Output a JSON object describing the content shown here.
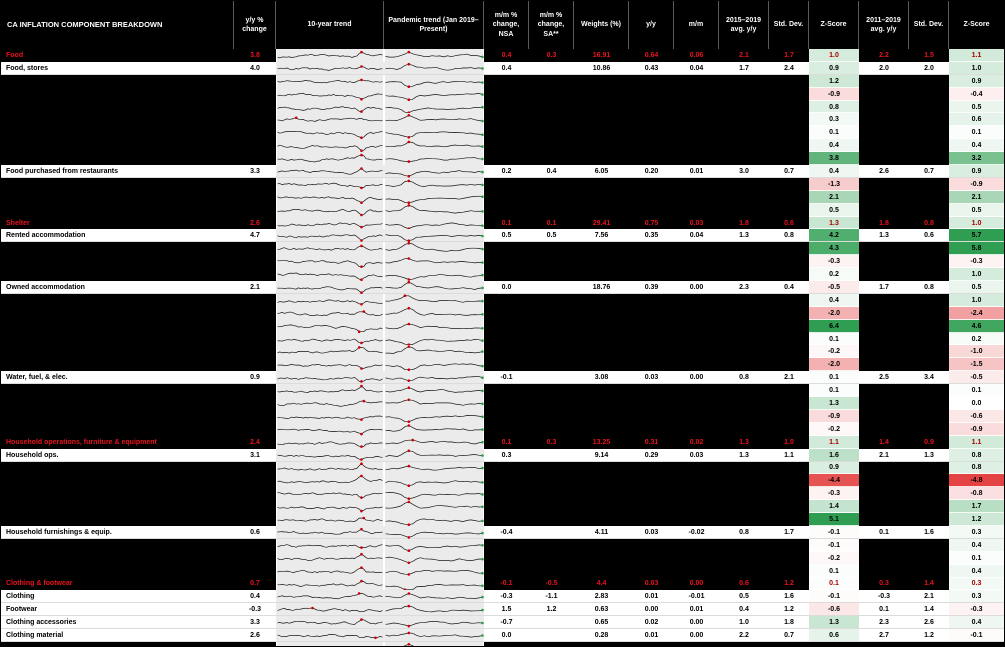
{
  "title": "CA INFLATION COMPONENT BREAKDOWN",
  "colors": {
    "header_bg": "#000000",
    "header_text": "#ffffff",
    "category_text": "#e8131d",
    "trend_bg": "#ebebeb",
    "sparkline": "#161616",
    "marker_red": "#cc0000",
    "marker_green": "#2e9e4f",
    "z_positive_end": "#2f9e52",
    "z_negative_end": "#e23b3b"
  },
  "chart_data": {
    "type": "table",
    "title": "CA INFLATION COMPONENT BREAKDOWN",
    "columns": [
      {
        "key": "label",
        "label": "CA INFLATION COMPONENT BREAKDOWN"
      },
      {
        "key": "yy_change",
        "label": "y/y % change"
      },
      {
        "key": "trend10",
        "label": "10-year trend"
      },
      {
        "key": "trend_pandemic",
        "label": "Pandemic trend (Jan 2019–Present)"
      },
      {
        "key": "mm_nsa",
        "label": "m/m % change, NSA"
      },
      {
        "key": "mm_sa",
        "label": "m/m % change, SA**"
      },
      {
        "key": "weights",
        "label": "Weights (%)"
      },
      {
        "key": "yy",
        "label": "y/y"
      },
      {
        "key": "mm",
        "label": "m/m"
      },
      {
        "key": "avg1",
        "label": "2015–2019 avg. y/y"
      },
      {
        "key": "std1",
        "label": "Std. Dev."
      },
      {
        "key": "z1",
        "label": "Z-Score"
      },
      {
        "key": "avg2",
        "label": "2011–2019 avg. y/y"
      },
      {
        "key": "std2",
        "label": "Std. Dev."
      },
      {
        "key": "z2",
        "label": "Z-Score"
      }
    ],
    "rows": [
      {
        "type": "category",
        "label": "Food",
        "yy_change": "3.8",
        "mm_nsa": "0.4",
        "mm_sa": "0.3",
        "weights": "16.91",
        "yy": "0.64",
        "mm": "0.06",
        "avg1": "2.1",
        "std1": "1.7",
        "z1": "1.0",
        "avg2": "2.2",
        "std2": "1.5",
        "z2": "1.1"
      },
      {
        "type": "item",
        "label": "Food, stores",
        "yy_change": "4.0",
        "mm_nsa": "0.4",
        "mm_sa": "",
        "weights": "10.86",
        "yy": "0.43",
        "mm": "0.04",
        "avg1": "1.7",
        "std1": "2.4",
        "z1": "0.9",
        "avg2": "2.0",
        "std2": "2.0",
        "z2": "1.0"
      },
      {
        "type": "redacted",
        "z1": "1.2",
        "z2": "0.9"
      },
      {
        "type": "redacted",
        "z1": "-0.9",
        "z2": "-0.4"
      },
      {
        "type": "redacted",
        "z1": "0.8",
        "z2": "0.5"
      },
      {
        "type": "redacted",
        "z1": "0.3",
        "z2": "0.6"
      },
      {
        "type": "redacted",
        "z1": "0.1",
        "z2": "0.1"
      },
      {
        "type": "redacted",
        "z1": "0.4",
        "z2": "0.4"
      },
      {
        "type": "redacted",
        "z1": "3.8",
        "z2": "3.2"
      },
      {
        "type": "item",
        "label": "Food purchased from restaurants",
        "yy_change": "3.3",
        "mm_nsa": "0.2",
        "mm_sa": "0.4",
        "weights": "6.05",
        "yy": "0.20",
        "mm": "0.01",
        "avg1": "3.0",
        "std1": "0.7",
        "z1": "0.4",
        "avg2": "2.6",
        "std2": "0.7",
        "z2": "0.9"
      },
      {
        "type": "redacted",
        "z1": "-1.3",
        "z2": "-0.9"
      },
      {
        "type": "redacted",
        "z1": "2.1",
        "z2": "2.1"
      },
      {
        "type": "redacted",
        "z1": "0.5",
        "z2": "0.5"
      },
      {
        "type": "category",
        "label": "Shelter",
        "yy_change": "2.6",
        "mm_nsa": "0.1",
        "mm_sa": "0.1",
        "weights": "29.41",
        "yy": "0.75",
        "mm": "0.03",
        "avg1": "1.8",
        "std1": "0.6",
        "z1": "1.3",
        "avg2": "1.8",
        "std2": "0.8",
        "z2": "1.0"
      },
      {
        "type": "item",
        "label": "Rented accommodation",
        "yy_change": "4.7",
        "mm_nsa": "0.5",
        "mm_sa": "0.5",
        "weights": "7.56",
        "yy": "0.35",
        "mm": "0.04",
        "avg1": "1.3",
        "std1": "0.8",
        "z1": "4.2",
        "avg2": "1.3",
        "std2": "0.6",
        "z2": "5.7"
      },
      {
        "type": "redacted",
        "z1": "4.3",
        "z2": "5.8"
      },
      {
        "type": "redacted",
        "z1": "-0.3",
        "z2": "-0.3"
      },
      {
        "type": "redacted",
        "z1": "0.2",
        "z2": "1.0"
      },
      {
        "type": "item",
        "label": "Owned accommodation",
        "yy_change": "2.1",
        "mm_nsa": "0.0",
        "mm_sa": "",
        "weights": "18.76",
        "yy": "0.39",
        "mm": "0.00",
        "avg1": "2.3",
        "std1": "0.4",
        "z1": "-0.5",
        "avg2": "1.7",
        "std2": "0.8",
        "z2": "0.5"
      },
      {
        "type": "redacted",
        "z1": "0.4",
        "z2": "1.0"
      },
      {
        "type": "redacted",
        "z1": "-2.0",
        "z2": "-2.4"
      },
      {
        "type": "redacted",
        "z1": "6.4",
        "z2": "4.6"
      },
      {
        "type": "redacted",
        "z1": "0.1",
        "z2": "0.2"
      },
      {
        "type": "redacted",
        "z1": "-0.2",
        "z2": "-1.0"
      },
      {
        "type": "redacted",
        "z1": "-2.0",
        "z2": "-1.5"
      },
      {
        "type": "item",
        "label": "Water, fuel, & elec.",
        "yy_change": "0.9",
        "mm_nsa": "-0.1",
        "mm_sa": "",
        "weights": "3.08",
        "yy": "0.03",
        "mm": "0.00",
        "avg1": "0.8",
        "std1": "2.1",
        "z1": "0.1",
        "avg2": "2.5",
        "std2": "3.4",
        "z2": "-0.5"
      },
      {
        "type": "redacted",
        "z1": "0.1",
        "z2": "0.1"
      },
      {
        "type": "redacted",
        "z1": "1.3",
        "z2": "0.0"
      },
      {
        "type": "redacted",
        "z1": "-0.9",
        "z2": "-0.6"
      },
      {
        "type": "redacted",
        "z1": "-0.2",
        "z2": "-0.9"
      },
      {
        "type": "category",
        "label": "Household operations, furniture & equipment",
        "yy_change": "2.4",
        "mm_nsa": "0.1",
        "mm_sa": "0.3",
        "weights": "13.25",
        "yy": "0.31",
        "mm": "0.02",
        "avg1": "1.3",
        "std1": "1.0",
        "z1": "1.1",
        "avg2": "1.4",
        "std2": "0.9",
        "z2": "1.1"
      },
      {
        "type": "item",
        "label": "Household ops.",
        "yy_change": "3.1",
        "mm_nsa": "0.3",
        "mm_sa": "",
        "weights": "9.14",
        "yy": "0.29",
        "mm": "0.03",
        "avg1": "1.3",
        "std1": "1.1",
        "z1": "1.6",
        "avg2": "2.1",
        "std2": "1.3",
        "z2": "0.8"
      },
      {
        "type": "redacted",
        "z1": "0.9",
        "z2": "0.8"
      },
      {
        "type": "redacted",
        "z1": "-4.4",
        "z2": "-4.8"
      },
      {
        "type": "redacted",
        "z1": "-0.3",
        "z2": "-0.8"
      },
      {
        "type": "redacted",
        "z1": "1.4",
        "z2": "1.7"
      },
      {
        "type": "redacted",
        "z1": "5.1",
        "z2": "1.2"
      },
      {
        "type": "item",
        "label": "Household furnishings & equip.",
        "yy_change": "0.6",
        "mm_nsa": "-0.4",
        "mm_sa": "",
        "weights": "4.11",
        "yy": "0.03",
        "mm": "-0.02",
        "avg1": "0.8",
        "std1": "1.7",
        "z1": "-0.1",
        "avg2": "0.1",
        "std2": "1.6",
        "z2": "0.3"
      },
      {
        "type": "redacted",
        "z1": "-0.1",
        "z2": "0.4"
      },
      {
        "type": "redacted",
        "z1": "-0.2",
        "z2": "0.1"
      },
      {
        "type": "redacted",
        "z1": "0.1",
        "z2": "0.4"
      },
      {
        "type": "category",
        "label": "Clothing & footwear",
        "yy_change": "0.7",
        "mm_nsa": "-0.1",
        "mm_sa": "-0.5",
        "weights": "4.4",
        "yy": "0.03",
        "mm": "0.00",
        "avg1": "0.6",
        "std1": "1.2",
        "z1": "0.1",
        "avg2": "0.3",
        "std2": "1.4",
        "z2": "0.3"
      },
      {
        "type": "item",
        "label": "Clothing",
        "yy_change": "0.4",
        "mm_nsa": "-0.3",
        "mm_sa": "-1.1",
        "weights": "2.83",
        "yy": "0.01",
        "mm": "-0.01",
        "avg1": "0.5",
        "std1": "1.6",
        "z1": "-0.1",
        "avg2": "-0.3",
        "std2": "2.1",
        "z2": "0.3"
      },
      {
        "type": "item",
        "label": "Footwear",
        "yy_change": "-0.3",
        "mm_nsa": "1.5",
        "mm_sa": "1.2",
        "weights": "0.63",
        "yy": "0.00",
        "mm": "0.01",
        "avg1": "0.4",
        "std1": "1.2",
        "z1": "-0.6",
        "avg2": "0.1",
        "std2": "1.4",
        "z2": "-0.3"
      },
      {
        "type": "item",
        "label": "Clothing accessories",
        "yy_change": "3.3",
        "mm_nsa": "-0.7",
        "mm_sa": "",
        "weights": "0.65",
        "yy": "0.02",
        "mm": "0.00",
        "avg1": "1.0",
        "std1": "1.8",
        "z1": "1.3",
        "avg2": "2.3",
        "std2": "2.6",
        "z2": "0.4"
      },
      {
        "type": "item",
        "label": "Clothing material",
        "yy_change": "2.6",
        "mm_nsa": "0.0",
        "mm_sa": "",
        "weights": "0.28",
        "yy": "0.01",
        "mm": "0.00",
        "avg1": "2.2",
        "std1": "0.7",
        "z1": "0.6",
        "avg2": "2.7",
        "std2": "1.2",
        "z2": "-0.1"
      },
      {
        "type": "redacted",
        "z1": "",
        "z2": ""
      }
    ]
  }
}
